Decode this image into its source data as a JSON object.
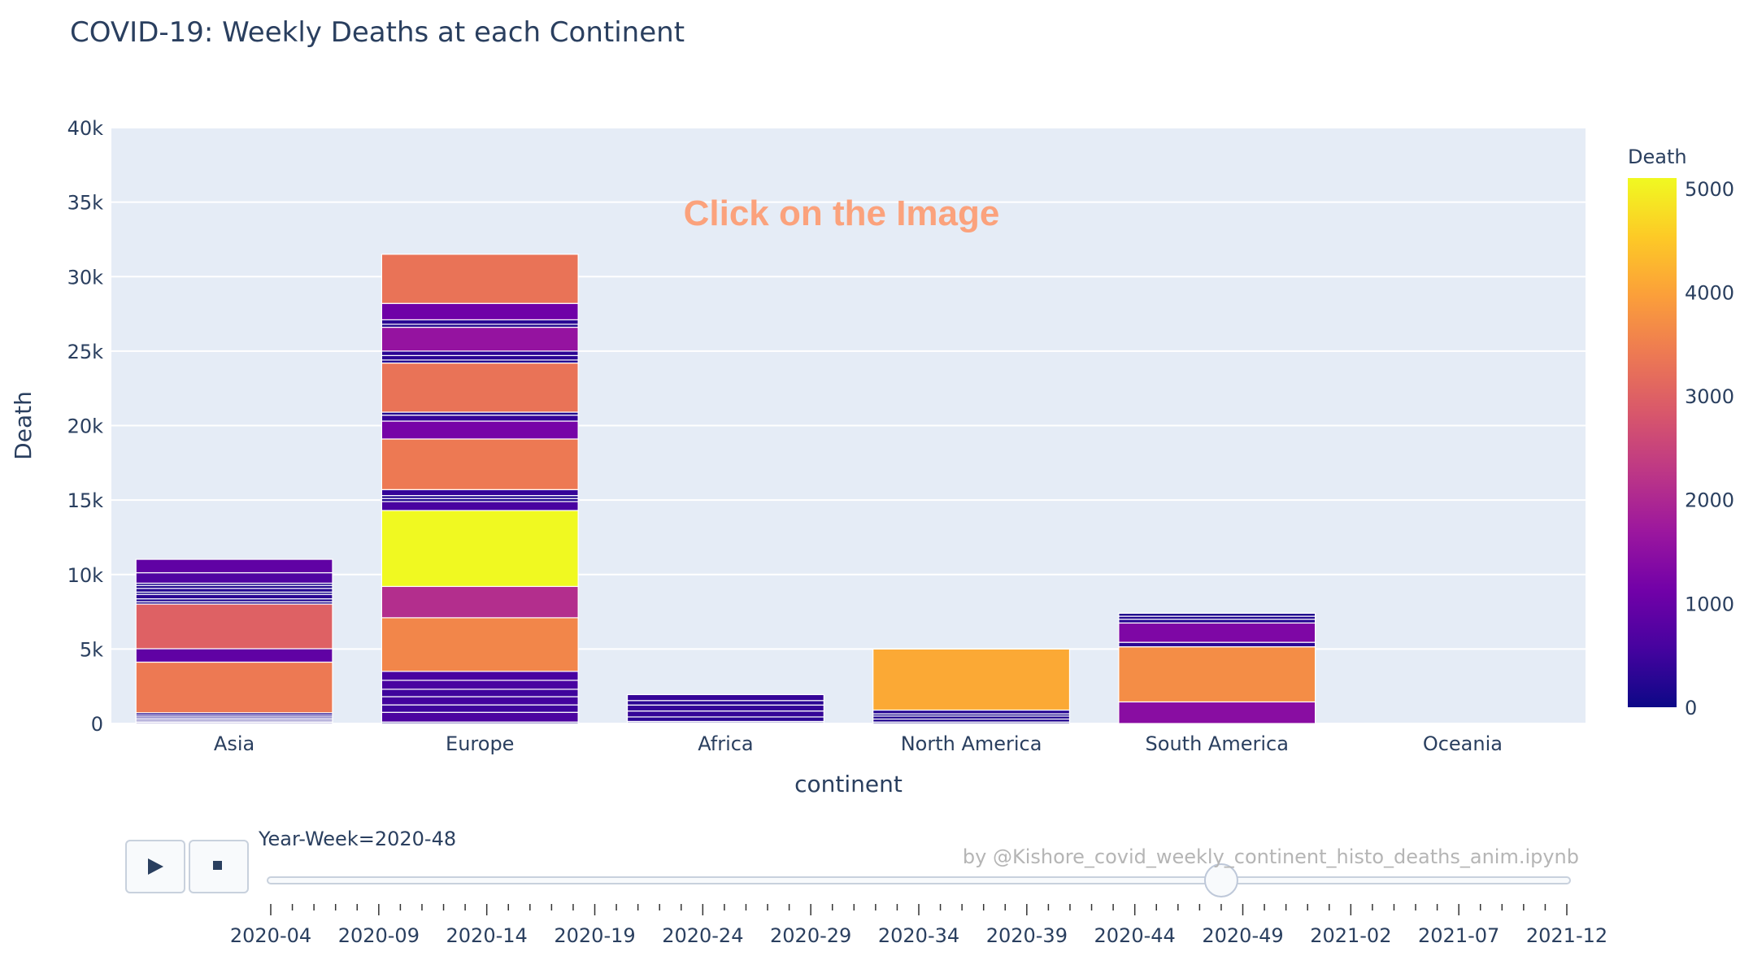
{
  "title": "COVID-19: Weekly Deaths at each Continent",
  "annotation": "Click on the Image",
  "credit": "by @Kishore_covid_weekly_continent_histo_deaths_anim.ipynb",
  "slider": {
    "current_label": "Year-Week=2020-48",
    "current_value": "2020-48",
    "tick_labels": [
      "2020-04",
      "2020-09",
      "2020-14",
      "2020-19",
      "2020-24",
      "2020-29",
      "2020-34",
      "2020-39",
      "2020-44",
      "2020-49",
      "2021-02",
      "2021-07",
      "2021-12"
    ]
  },
  "controls": {
    "play_icon": "play-icon",
    "stop_icon": "stop-icon"
  },
  "colors": {
    "plot_bg": "#e5ecf6",
    "colorscale": [
      "#0d0887",
      "#46039f",
      "#7201a8",
      "#9c179e",
      "#bd3786",
      "#d8576b",
      "#ed7953",
      "#fb9f3a",
      "#fdca26",
      "#f0f921"
    ]
  },
  "chart_data": {
    "type": "bar",
    "stacked": true,
    "title": "COVID-19: Weekly Deaths at each Continent",
    "xlabel": "continent",
    "ylabel": "Death",
    "categories": [
      "Asia",
      "Europe",
      "Africa",
      "North America",
      "South America",
      "Oceania"
    ],
    "ylim": [
      0,
      40000
    ],
    "yticks": [
      0,
      5000,
      10000,
      15000,
      20000,
      25000,
      30000,
      35000,
      40000
    ],
    "ytick_labels": [
      "0",
      "5k",
      "10k",
      "15k",
      "20k",
      "25k",
      "30k",
      "35k",
      "40k"
    ],
    "grid": true,
    "colorbar": {
      "title": "Death",
      "range": [
        0,
        5100
      ],
      "ticks": [
        0,
        1000,
        2000,
        3000,
        4000,
        5000
      ],
      "tick_labels": [
        "0",
        "1000",
        "2000",
        "3000",
        "4000",
        "5000"
      ]
    },
    "stacks": [
      {
        "continent": "Asia",
        "segments": [
          80,
          80,
          90,
          100,
          100,
          120,
          150,
          3400,
          900,
          3000,
          150,
          200,
          300,
          150,
          250,
          200,
          150,
          700,
          900
        ]
      },
      {
        "continent": "Europe",
        "segments": [
          100,
          650,
          500,
          550,
          500,
          600,
          600,
          3600,
          2100,
          5100,
          600,
          200,
          200,
          400,
          3400,
          1200,
          400,
          200,
          3300,
          200,
          300,
          300,
          1600,
          200,
          300,
          1100,
          3300
        ]
      },
      {
        "continent": "Africa",
        "segments": [
          60,
          80,
          300,
          400,
          400,
          300,
          400
        ]
      },
      {
        "continent": "North America",
        "segments": [
          100,
          200,
          200,
          150,
          250,
          4100
        ]
      },
      {
        "continent": "South America",
        "segments": [
          1450,
          3700,
          300,
          1300,
          250,
          200,
          200
        ]
      },
      {
        "continent": "Oceania",
        "segments": [
          5,
          5,
          5,
          10
        ]
      }
    ]
  }
}
